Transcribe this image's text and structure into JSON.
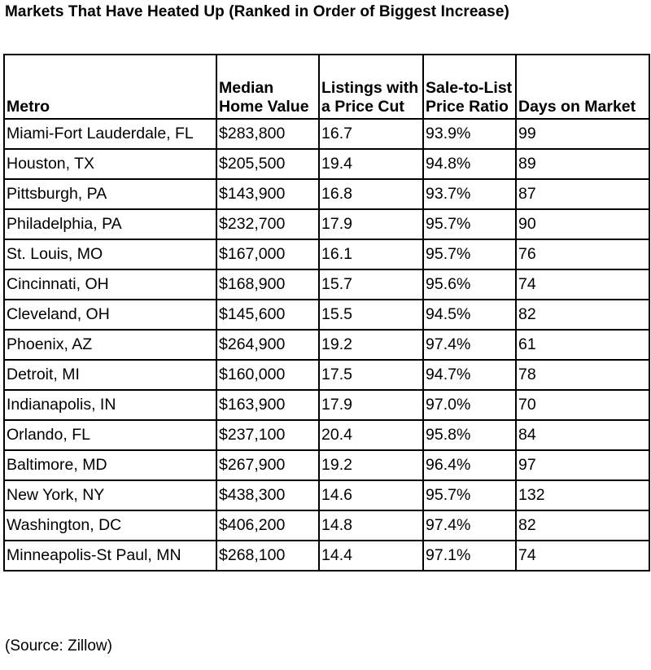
{
  "title": "Markets That Have Heated Up (Ranked in Order of Biggest Increase)",
  "columns": [
    {
      "line1": "",
      "line2": "Metro"
    },
    {
      "line1": "Median",
      "line2": "Home Value"
    },
    {
      "line1": "Listings with",
      "line2": "a Price Cut"
    },
    {
      "line1": "Sale-to-List",
      "line2": "Price Ratio"
    },
    {
      "line1": "",
      "line2": "Days on Market"
    }
  ],
  "rows": [
    [
      "Miami-Fort Lauderdale, FL",
      "$283,800",
      "16.7",
      "93.9%",
      "99"
    ],
    [
      "Houston, TX",
      "$205,500",
      "19.4",
      "94.8%",
      "89"
    ],
    [
      "Pittsburgh, PA",
      "$143,900",
      "16.8",
      "93.7%",
      "87"
    ],
    [
      "Philadelphia, PA",
      "$232,700",
      "17.9",
      "95.7%",
      "90"
    ],
    [
      "St. Louis, MO",
      "$167,000",
      "16.1",
      "95.7%",
      "76"
    ],
    [
      "Cincinnati, OH",
      "$168,900",
      "15.7",
      "95.6%",
      "74"
    ],
    [
      "Cleveland, OH",
      "$145,600",
      "15.5",
      "94.5%",
      "82"
    ],
    [
      "Phoenix, AZ",
      "$264,900",
      "19.2",
      "97.4%",
      "61"
    ],
    [
      "Detroit, MI",
      "$160,000",
      "17.5",
      "94.7%",
      "78"
    ],
    [
      "Indianapolis, IN",
      "$163,900",
      "17.9",
      "97.0%",
      "70"
    ],
    [
      "Orlando, FL",
      "$237,100",
      "20.4",
      "95.8%",
      "84"
    ],
    [
      "Baltimore, MD",
      "$267,900",
      "19.2",
      "96.4%",
      "97"
    ],
    [
      "New York, NY",
      "$438,300",
      "14.6",
      "95.7%",
      "132"
    ],
    [
      "Washington, DC",
      "$406,200",
      "14.8",
      "97.4%",
      "82"
    ],
    [
      "Minneapolis-St Paul, MN",
      "$268,100",
      "14.4",
      "97.1%",
      "74"
    ]
  ],
  "source": "(Source: Zillow)"
}
